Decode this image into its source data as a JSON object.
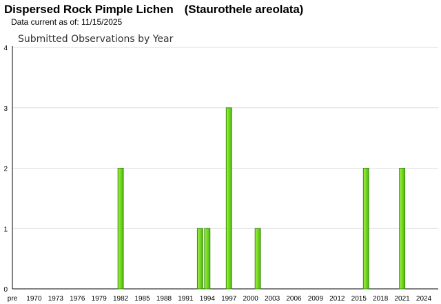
{
  "header": {
    "common_name": "Dispersed Rock Pimple Lichen",
    "scientific_name": "(Staurothele areolata)",
    "data_current": "Data current as of: 11/15/2025"
  },
  "chart_data": {
    "type": "bar",
    "title": "Submitted Observations by Year",
    "xlabel": "",
    "ylabel": "",
    "ylim": [
      0,
      4
    ],
    "yticks": [
      0,
      1,
      2,
      3,
      4
    ],
    "x_tick_labels": [
      "pre",
      "1970",
      "1973",
      "1976",
      "1979",
      "1982",
      "1985",
      "1988",
      "1991",
      "1994",
      "1997",
      "2000",
      "2003",
      "2006",
      "2009",
      "2012",
      "2015",
      "2018",
      "2021",
      "2024"
    ],
    "x_tick_years": [
      1967,
      1970,
      1973,
      1976,
      1979,
      1982,
      1985,
      1988,
      1991,
      1994,
      1997,
      2000,
      2003,
      2006,
      2009,
      2012,
      2015,
      2018,
      2021,
      2024
    ],
    "x_range": [
      1967,
      2026
    ],
    "bars": [
      {
        "year": 1982,
        "value": 2
      },
      {
        "year": 1993,
        "value": 1
      },
      {
        "year": 1994,
        "value": 1
      },
      {
        "year": 1997,
        "value": 3
      },
      {
        "year": 2001,
        "value": 1
      },
      {
        "year": 2016,
        "value": 2
      },
      {
        "year": 2021,
        "value": 2
      }
    ],
    "grid": true,
    "bar_color": "#77dd22",
    "bar_edge_color": "#3a8a10"
  }
}
